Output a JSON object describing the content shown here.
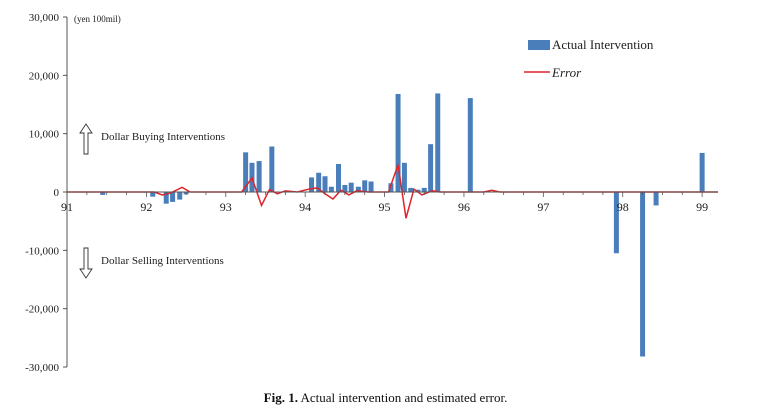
{
  "chart_data": {
    "type": "bar",
    "unit_label": "(yen 100mil)",
    "ylim": [
      -30000,
      30000
    ],
    "y_ticks": [
      30000,
      20000,
      10000,
      0,
      -10000,
      -20000,
      -30000
    ],
    "y_tick_labels": [
      "30,000",
      "20,000",
      "10,000",
      "0",
      "-10,000",
      "-20,000",
      "-30,000"
    ],
    "xlim": [
      1991.0,
      1999.2
    ],
    "x_ticks": [
      1991,
      1992,
      1993,
      1994,
      1995,
      1996,
      1997,
      1998,
      1999
    ],
    "x_tick_labels": [
      "91",
      "92",
      "93",
      "94",
      "95",
      "96",
      "97",
      "98",
      "99"
    ],
    "grid": false,
    "legend_position": "top-right",
    "legend": {
      "actual": "Actual Intervention",
      "error": "Error"
    },
    "annotations": {
      "buying": "Dollar Buying Interventions",
      "selling": "Dollar Selling Interventions"
    },
    "colors": {
      "bar": "#4a7ebb",
      "line": "#e0242b",
      "axis": "#555555"
    },
    "series": [
      {
        "name": "Actual Intervention",
        "type": "bar",
        "points": [
          {
            "x": 1991.45,
            "y": -500
          },
          {
            "x": 1992.08,
            "y": -800
          },
          {
            "x": 1992.25,
            "y": -2000
          },
          {
            "x": 1992.33,
            "y": -1700
          },
          {
            "x": 1992.42,
            "y": -1300
          },
          {
            "x": 1992.5,
            "y": -400
          },
          {
            "x": 1993.25,
            "y": 6800
          },
          {
            "x": 1993.33,
            "y": 5000
          },
          {
            "x": 1993.42,
            "y": 5300
          },
          {
            "x": 1993.58,
            "y": 7800
          },
          {
            "x": 1994.08,
            "y": 2500
          },
          {
            "x": 1994.17,
            "y": 3300
          },
          {
            "x": 1994.25,
            "y": 2700
          },
          {
            "x": 1994.33,
            "y": 900
          },
          {
            "x": 1994.42,
            "y": 4800
          },
          {
            "x": 1994.5,
            "y": 1200
          },
          {
            "x": 1994.58,
            "y": 1600
          },
          {
            "x": 1994.67,
            "y": 900
          },
          {
            "x": 1994.75,
            "y": 2000
          },
          {
            "x": 1994.83,
            "y": 1800
          },
          {
            "x": 1995.08,
            "y": 1500
          },
          {
            "x": 1995.17,
            "y": 16800
          },
          {
            "x": 1995.25,
            "y": 5000
          },
          {
            "x": 1995.33,
            "y": 700
          },
          {
            "x": 1995.42,
            "y": 400
          },
          {
            "x": 1995.5,
            "y": 700
          },
          {
            "x": 1995.58,
            "y": 8200
          },
          {
            "x": 1995.67,
            "y": 16900
          },
          {
            "x": 1996.08,
            "y": 16100
          },
          {
            "x": 1997.92,
            "y": -10500
          },
          {
            "x": 1998.25,
            "y": -28200
          },
          {
            "x": 1998.42,
            "y": -2300
          },
          {
            "x": 1999.0,
            "y": 6700
          }
        ]
      },
      {
        "name": "Error",
        "type": "line",
        "points": [
          {
            "x": 1991.0,
            "y": 0
          },
          {
            "x": 1992.1,
            "y": 0
          },
          {
            "x": 1992.2,
            "y": -500
          },
          {
            "x": 1992.3,
            "y": -200
          },
          {
            "x": 1992.45,
            "y": 800
          },
          {
            "x": 1992.55,
            "y": 0
          },
          {
            "x": 1993.2,
            "y": 0
          },
          {
            "x": 1993.33,
            "y": 2400
          },
          {
            "x": 1993.45,
            "y": -2300
          },
          {
            "x": 1993.55,
            "y": 400
          },
          {
            "x": 1993.65,
            "y": -300
          },
          {
            "x": 1993.75,
            "y": 200
          },
          {
            "x": 1993.9,
            "y": 0
          },
          {
            "x": 1994.05,
            "y": 500
          },
          {
            "x": 1994.15,
            "y": 700
          },
          {
            "x": 1994.25,
            "y": -300
          },
          {
            "x": 1994.35,
            "y": -1200
          },
          {
            "x": 1994.45,
            "y": 300
          },
          {
            "x": 1994.55,
            "y": -500
          },
          {
            "x": 1994.65,
            "y": 200
          },
          {
            "x": 1994.8,
            "y": 0
          },
          {
            "x": 1995.05,
            "y": 0
          },
          {
            "x": 1995.17,
            "y": 4700
          },
          {
            "x": 1995.27,
            "y": -4500
          },
          {
            "x": 1995.37,
            "y": 500
          },
          {
            "x": 1995.47,
            "y": -500
          },
          {
            "x": 1995.6,
            "y": 200
          },
          {
            "x": 1995.7,
            "y": 0
          },
          {
            "x": 1996.25,
            "y": 0
          },
          {
            "x": 1996.35,
            "y": 300
          },
          {
            "x": 1996.45,
            "y": 0
          },
          {
            "x": 1999.2,
            "y": 0
          }
        ]
      }
    ]
  },
  "caption": {
    "fig_label": "Fig. 1.",
    "text": "Actual intervention and estimated error."
  }
}
